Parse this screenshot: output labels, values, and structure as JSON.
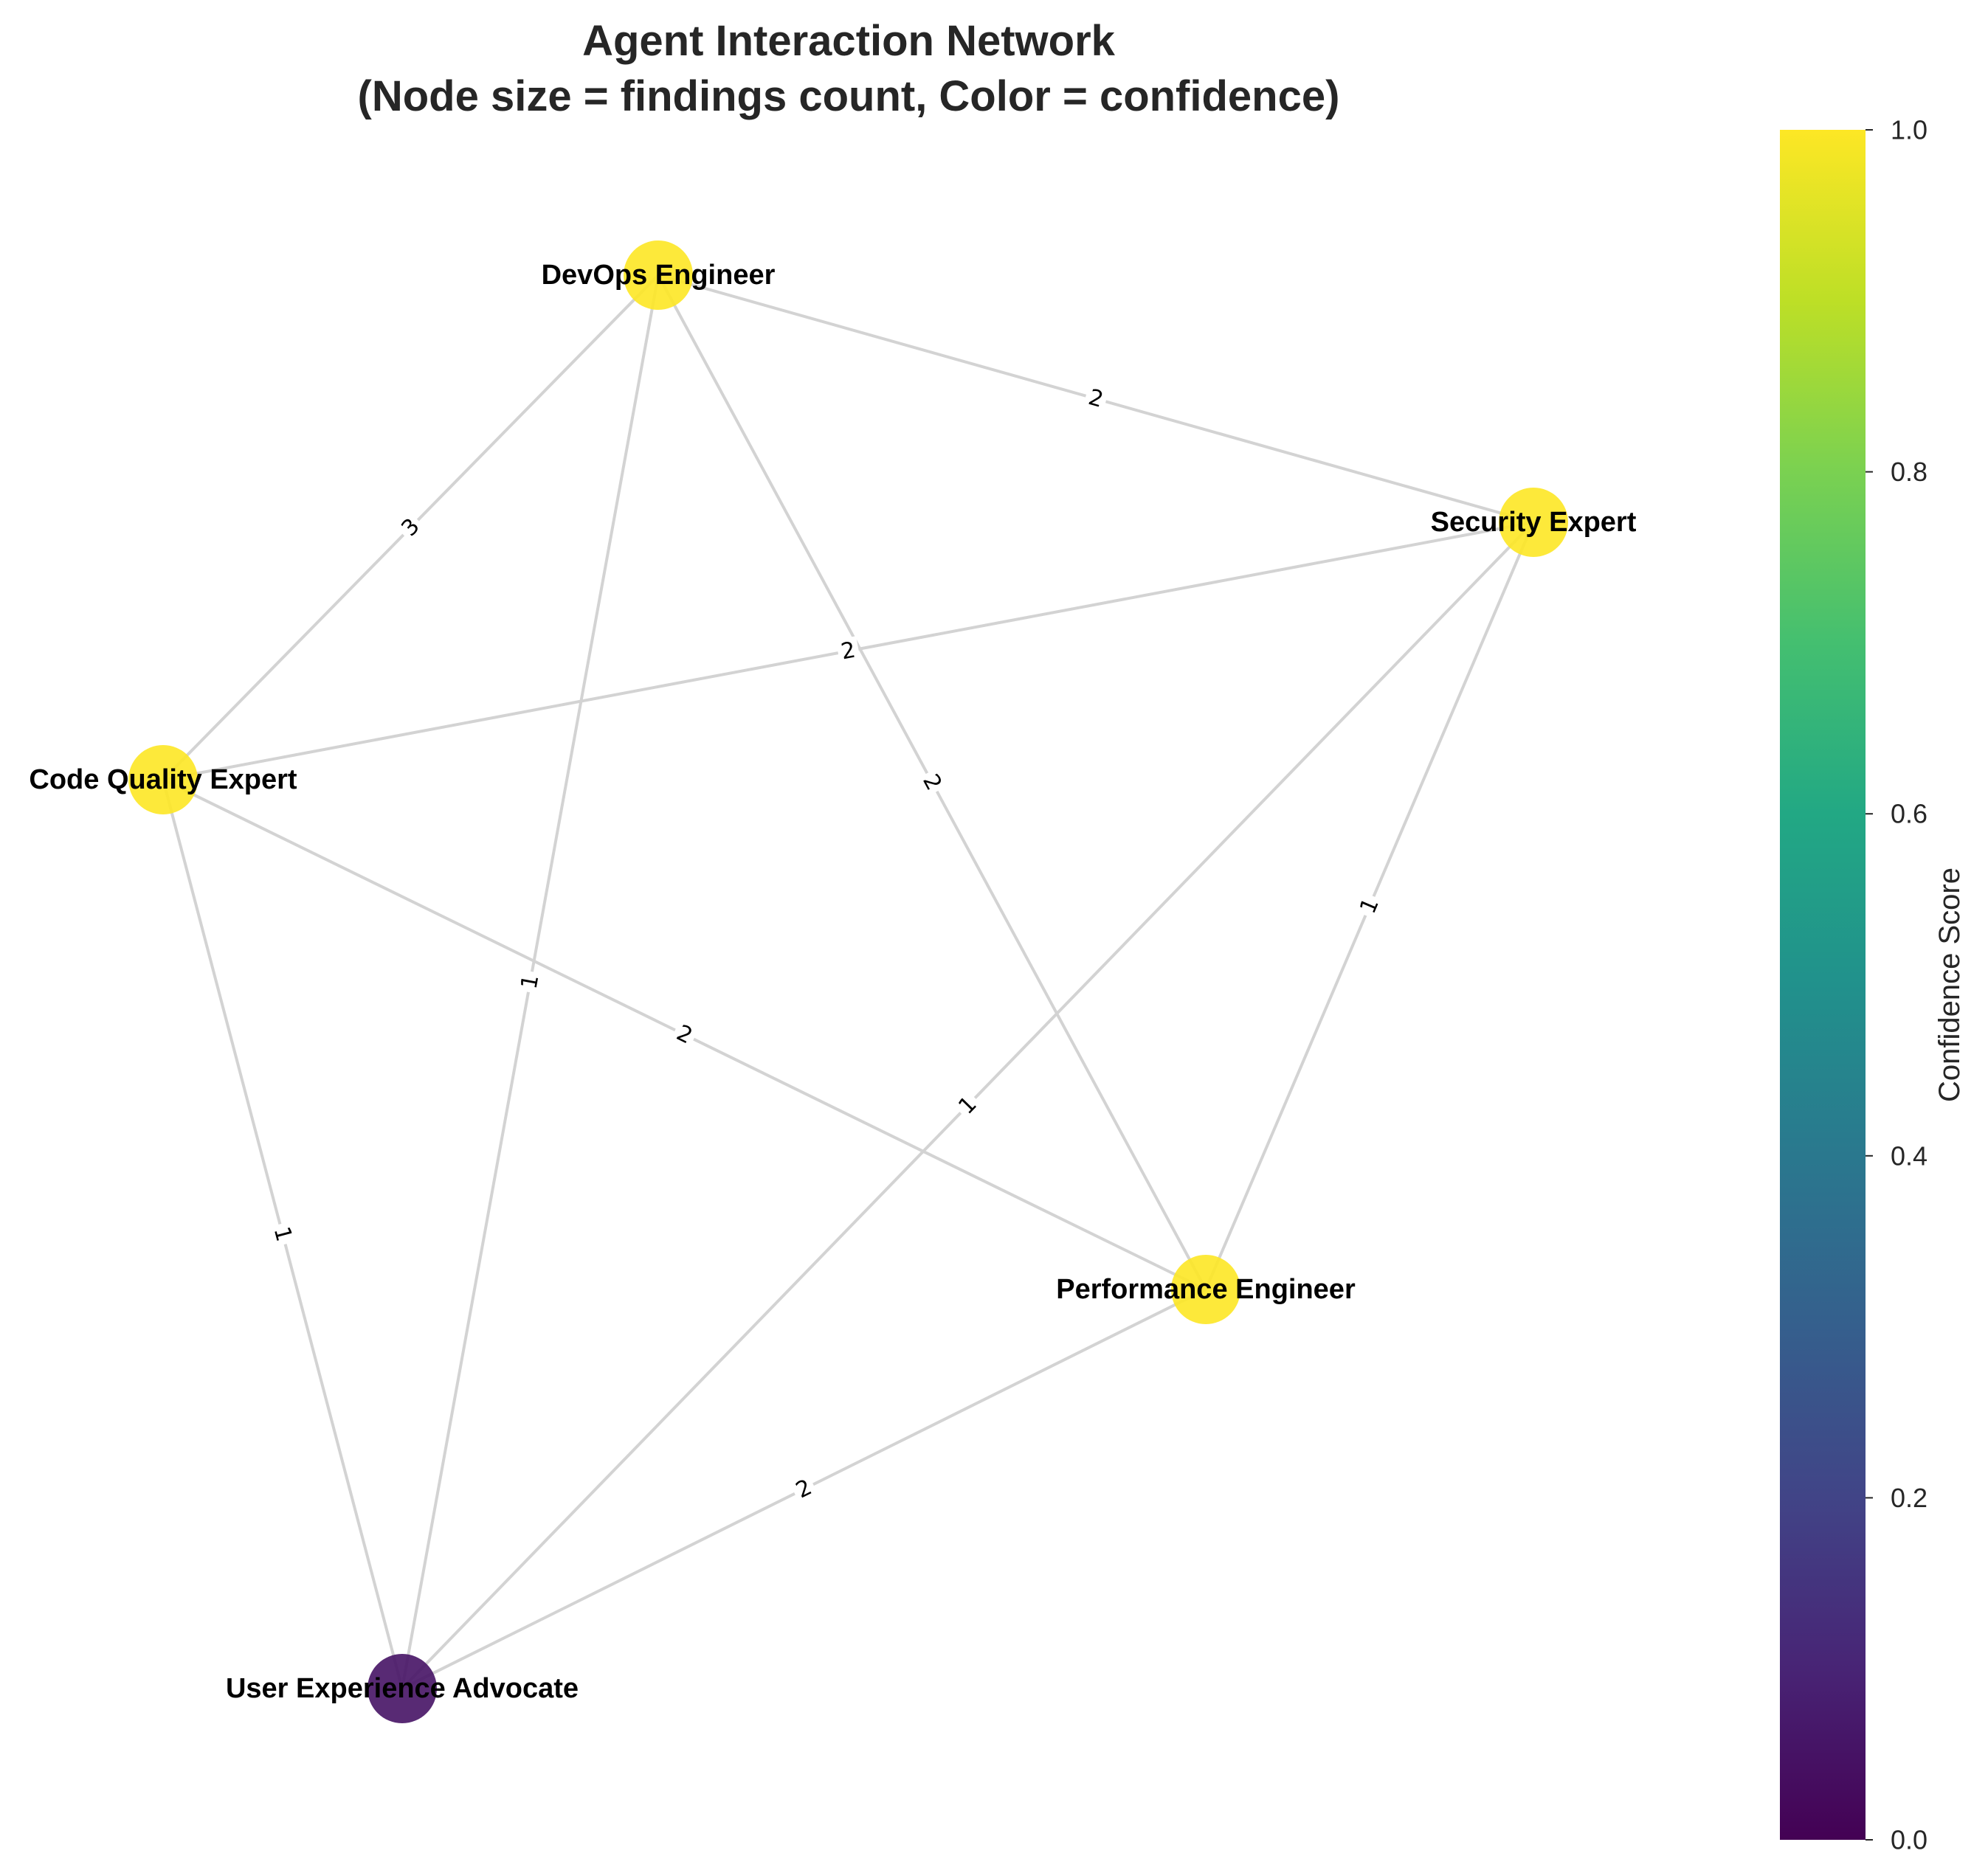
{
  "title_line1": "Agent Interaction Network",
  "title_line2": "(Node size = findings count, Color = confidence)",
  "chart_data": {
    "type": "network",
    "nodes": [
      {
        "id": "devops",
        "label": "DevOps Engineer",
        "confidence": 1.0
      },
      {
        "id": "security",
        "label": "Security Expert",
        "confidence": 1.0
      },
      {
        "id": "codequality",
        "label": "Code Quality Expert",
        "confidence": 1.0
      },
      {
        "id": "performance",
        "label": "Performance Engineer",
        "confidence": 1.0
      },
      {
        "id": "ux",
        "label": "User Experience Advocate",
        "confidence": 0.05
      }
    ],
    "edges": [
      {
        "source": "devops",
        "target": "security",
        "weight": "2"
      },
      {
        "source": "devops",
        "target": "codequality",
        "weight": "3"
      },
      {
        "source": "devops",
        "target": "ux",
        "weight": "1"
      },
      {
        "source": "devops",
        "target": "performance",
        "weight": "2"
      },
      {
        "source": "security",
        "target": "codequality",
        "weight": "2"
      },
      {
        "source": "security",
        "target": "ux",
        "weight": "1"
      },
      {
        "source": "security",
        "target": "performance",
        "weight": "1"
      },
      {
        "source": "codequality",
        "target": "performance",
        "weight": "2"
      },
      {
        "source": "codequality",
        "target": "ux",
        "weight": "1"
      },
      {
        "source": "performance",
        "target": "ux",
        "weight": "2"
      }
    ],
    "colorbar": {
      "label": "Confidence Score",
      "colormap": "viridis",
      "range": [
        0.0,
        1.0
      ],
      "ticks": [
        "0.0",
        "0.2",
        "0.4",
        "0.6",
        "0.8",
        "1.0"
      ]
    },
    "edge_color": "#d3d3d3"
  }
}
